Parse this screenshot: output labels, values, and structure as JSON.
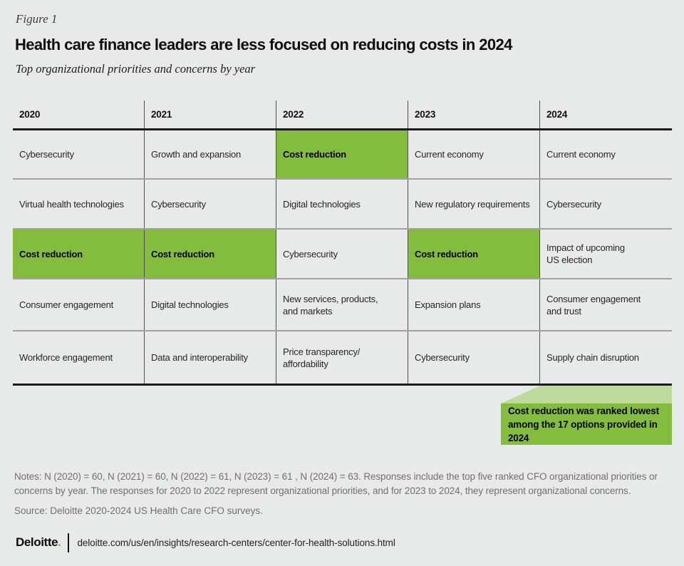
{
  "figure_label": "Figure 1",
  "title": "Health care finance leaders are less focused on reducing costs in 2024",
  "subtitle": "Top organizational priorities and concerns by year",
  "table": {
    "years": [
      "2020",
      "2021",
      "2022",
      "2023",
      "2024"
    ],
    "rows": [
      {
        "cells": [
          {
            "text": "Cybersecurity",
            "highlight": false
          },
          {
            "text": "Growth and expansion",
            "highlight": false
          },
          {
            "text": "Cost reduction",
            "highlight": true
          },
          {
            "text": "Current economy",
            "highlight": false
          },
          {
            "text": "Current economy",
            "highlight": false
          }
        ]
      },
      {
        "cells": [
          {
            "text": "Virtual health technologies",
            "highlight": false
          },
          {
            "text": "Cybersecurity",
            "highlight": false
          },
          {
            "text": "Digital technologies",
            "highlight": false
          },
          {
            "text": "New regulatory requirements",
            "highlight": false
          },
          {
            "text": "Cybersecurity",
            "highlight": false
          }
        ]
      },
      {
        "cells": [
          {
            "text": "Cost reduction",
            "highlight": true
          },
          {
            "text": "Cost reduction",
            "highlight": true
          },
          {
            "text": "Cybersecurity",
            "highlight": false
          },
          {
            "text": "Cost reduction",
            "highlight": true
          },
          {
            "text": "Impact of upcoming\nUS election",
            "highlight": false
          }
        ]
      },
      {
        "cells": [
          {
            "text": "Consumer engagement",
            "highlight": false
          },
          {
            "text": "Digital technologies",
            "highlight": false
          },
          {
            "text": "New services, products,\nand markets",
            "highlight": false
          },
          {
            "text": "Expansion plans",
            "highlight": false
          },
          {
            "text": "Consumer engagement\nand trust",
            "highlight": false
          }
        ]
      },
      {
        "cells": [
          {
            "text": "Workforce engagement",
            "highlight": false
          },
          {
            "text": "Data and interoperability",
            "highlight": false
          },
          {
            "text": "Price transparency/\naffordability",
            "highlight": false
          },
          {
            "text": "Cybersecurity",
            "highlight": false
          },
          {
            "text": "Supply chain disruption",
            "highlight": false
          }
        ]
      }
    ]
  },
  "callout": {
    "text": "Cost reduction was ranked lowest\namong the 17 options provided in 2024"
  },
  "notes": "Notes: N (2020) = 60, N (2021) = 60, N (2022) = 61, N (2023) = 61 , N (2024) = 63. Responses include the top five ranked CFO organizational priorities or concerns by year. The responses for 2020 to 2022 represent organizational priorities, and for 2023 to 2024, they represent organizational concerns.",
  "source": "Source: Deloitte 2020-2024 US Health Care CFO surveys.",
  "footer": {
    "brand": "Deloitte",
    "brand_dot": ".",
    "url": "deloitte.com/us/en/insights/research-centers/center-for-health-solutions.html"
  },
  "colors": {
    "highlight_green": "#84bd3e",
    "light_green": "#bedb9b",
    "brand_green": "#7abd36",
    "background": "#e8e9e9",
    "rule_dark": "#1a1a1a",
    "rule_gray": "#a2a2a2"
  },
  "chart_data": {
    "type": "table",
    "title": "Health care finance leaders are less focused on reducing costs in 2024",
    "subtitle": "Top organizational priorities and concerns by year",
    "columns": [
      "2020",
      "2021",
      "2022",
      "2023",
      "2024"
    ],
    "rows": [
      [
        "Cybersecurity",
        "Growth and expansion",
        "Cost reduction",
        "Current economy",
        "Current economy"
      ],
      [
        "Virtual health technologies",
        "Cybersecurity",
        "Digital technologies",
        "New regulatory requirements",
        "Cybersecurity"
      ],
      [
        "Cost reduction",
        "Cost reduction",
        "Cybersecurity",
        "Cost reduction",
        "Impact of upcoming US election"
      ],
      [
        "Consumer engagement",
        "Digital technologies",
        "New services, products, and markets",
        "Expansion plans",
        "Consumer engagement and trust"
      ],
      [
        "Workforce engagement",
        "Data and interoperability",
        "Price transparency/affordability",
        "Cybersecurity",
        "Supply chain disruption"
      ]
    ],
    "highlighted_cells": [
      {
        "row": 1,
        "column": "2022",
        "value": "Cost reduction"
      },
      {
        "row": 3,
        "column": "2020",
        "value": "Cost reduction"
      },
      {
        "row": 3,
        "column": "2021",
        "value": "Cost reduction"
      },
      {
        "row": 3,
        "column": "2023",
        "value": "Cost reduction"
      }
    ],
    "annotation": "Cost reduction was ranked lowest among the 17 options provided in 2024"
  }
}
